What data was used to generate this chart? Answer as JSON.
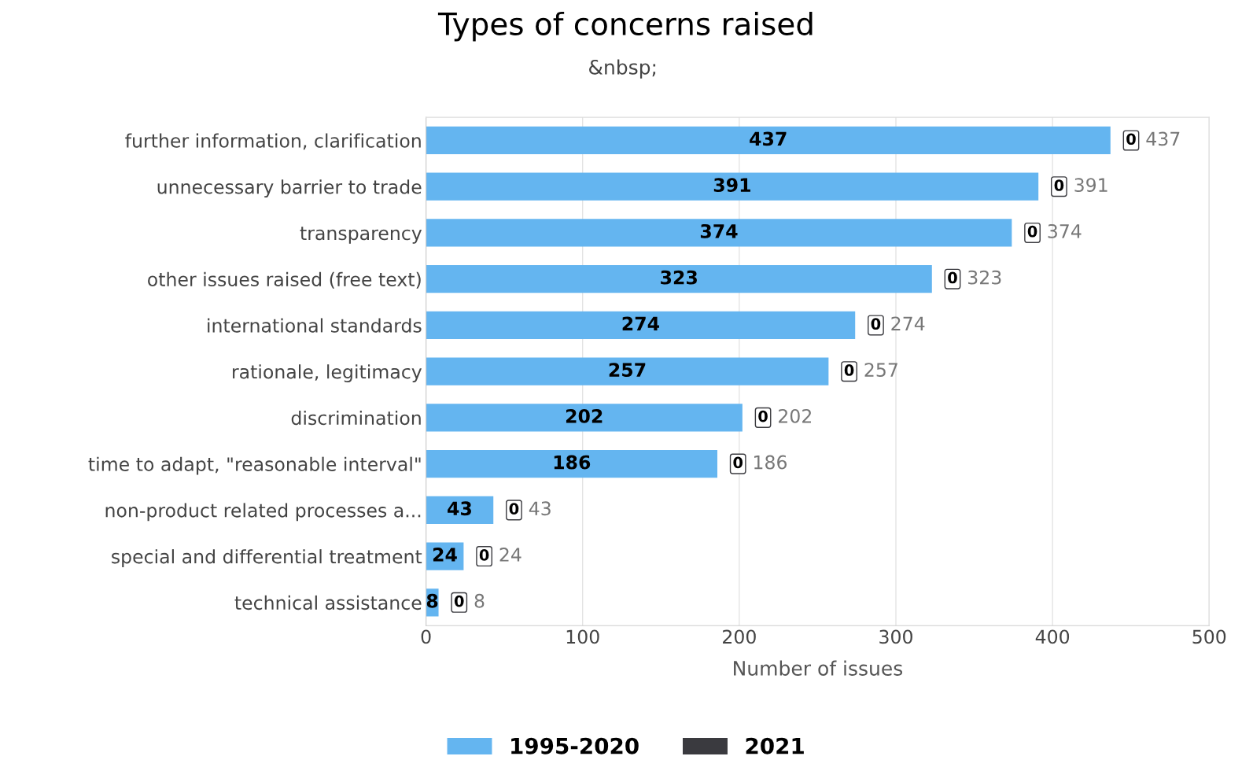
{
  "chart_data": {
    "type": "bar",
    "orientation": "horizontal",
    "stacked": true,
    "title": "Types of concerns raised",
    "subtitle": "&nbsp;",
    "xlabel": "Number of issues",
    "categories": [
      "further information, clarification",
      "unnecessary barrier to trade",
      "transparency",
      "other issues raised (free text)",
      "international standards",
      "rationale, legitimacy",
      "discrimination",
      "time to adapt, \"reasonable interval\"",
      "non-product related processes a...",
      "special and differential treatment",
      "technical assistance"
    ],
    "series": [
      {
        "name": "1995-2020",
        "color": "#64b5f0",
        "values": [
          437,
          391,
          374,
          323,
          274,
          257,
          202,
          186,
          43,
          24,
          8
        ]
      },
      {
        "name": "2021",
        "color": "#3a3a3f",
        "values": [
          0,
          0,
          0,
          0,
          0,
          0,
          0,
          0,
          0,
          0,
          0
        ]
      }
    ],
    "totals": [
      "437",
      "391",
      "374",
      "323",
      "274",
      "257",
      "202",
      "186",
      "43",
      "24",
      "8"
    ],
    "data_labels": true,
    "xlim": [
      0,
      500
    ],
    "xticks": [
      0,
      100,
      200,
      300,
      400,
      500
    ],
    "grid": "x",
    "legend": "bottom"
  }
}
